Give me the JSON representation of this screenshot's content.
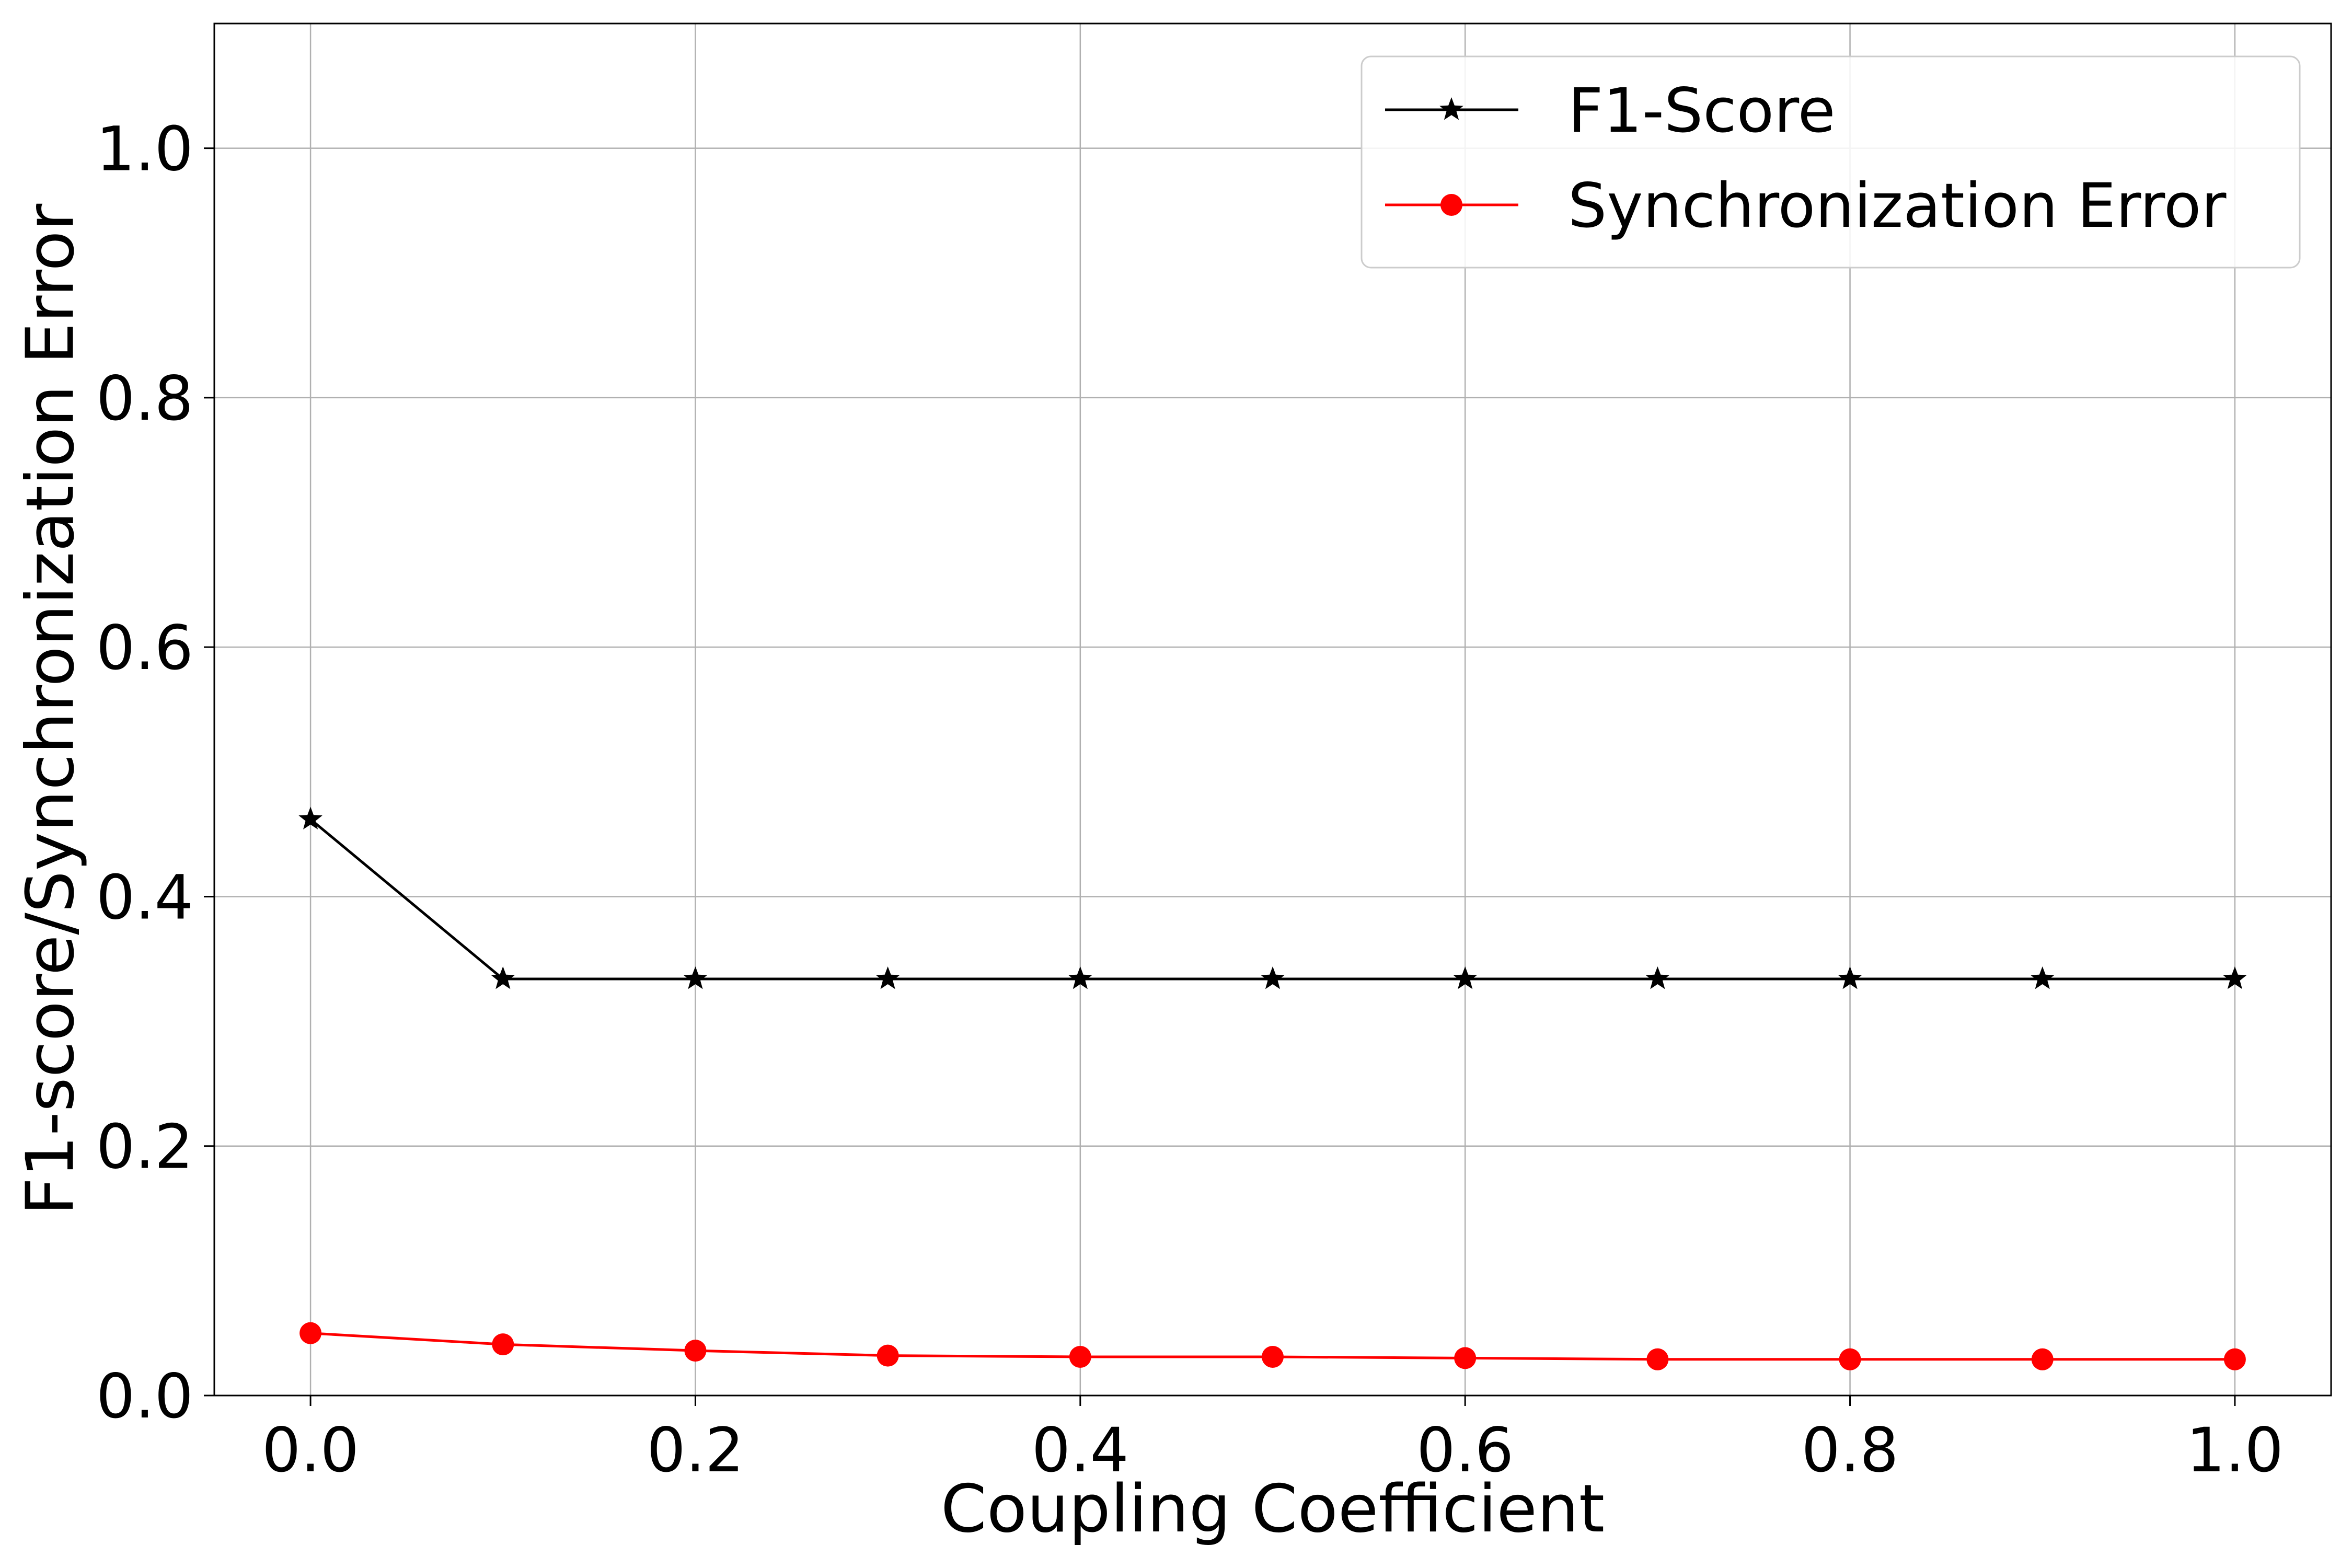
{
  "chart_data": {
    "type": "line",
    "xlabel": "Coupling Coefficient",
    "ylabel": "F1-score/Synchronization Error",
    "xlim": [
      -0.05,
      1.05
    ],
    "ylim": [
      0.0,
      1.1
    ],
    "x_ticks": [
      0.0,
      0.2,
      0.4,
      0.6,
      0.8,
      1.0
    ],
    "x_tick_labels": [
      "0.0",
      "0.2",
      "0.4",
      "0.6",
      "0.8",
      "1.0"
    ],
    "y_ticks": [
      0.0,
      0.2,
      0.4,
      0.6,
      0.8,
      1.0
    ],
    "y_tick_labels": [
      "0.0",
      "0.2",
      "0.4",
      "0.6",
      "0.8",
      "1.0"
    ],
    "grid": true,
    "legend_position": "top-right",
    "x": [
      0.0,
      0.1,
      0.2,
      0.3,
      0.4,
      0.5,
      0.6,
      0.7,
      0.8,
      0.9,
      1.0
    ],
    "series": [
      {
        "name": "F1-Score",
        "color": "#000000",
        "marker": "star",
        "values": [
          0.462,
          0.334,
          0.334,
          0.334,
          0.334,
          0.334,
          0.334,
          0.334,
          0.334,
          0.334,
          0.334
        ]
      },
      {
        "name": "Synchronization Error",
        "color": "#ff0000",
        "marker": "circle",
        "values": [
          0.05,
          0.041,
          0.036,
          0.032,
          0.031,
          0.031,
          0.03,
          0.029,
          0.029,
          0.029,
          0.029
        ]
      }
    ]
  }
}
